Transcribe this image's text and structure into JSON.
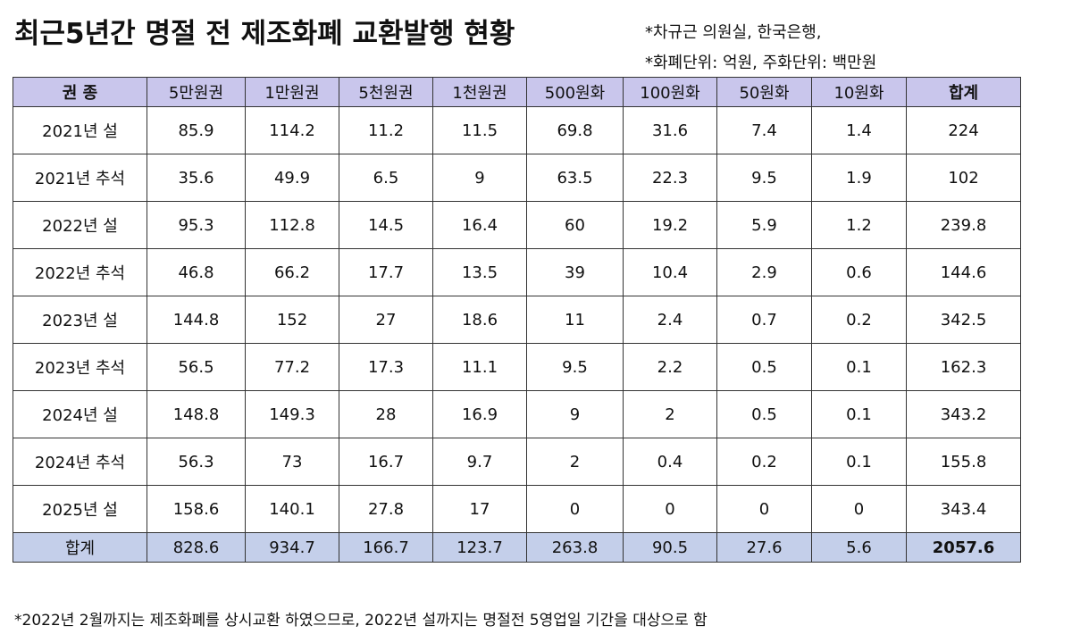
{
  "title": "최근5년간 명절 전 제조화폐 교환발행 현황",
  "source_lines": [
    "*차규근 의원실, 한국은행,",
    "*화폐단위: 억원, 주화단위: 백만원"
  ],
  "table": {
    "headers": [
      "권 종",
      "5만원권",
      "1만원권",
      "5천원권",
      "1천원권",
      "500원화",
      "100원화",
      "50원화",
      "10원화",
      "합계"
    ],
    "rows": [
      [
        "2021년 설",
        "85.9",
        "114.2",
        "11.2",
        "11.5",
        "69.8",
        "31.6",
        "7.4",
        "1.4",
        "224"
      ],
      [
        "2021년 추석",
        "35.6",
        "49.9",
        "6.5",
        "9",
        "63.5",
        "22.3",
        "9.5",
        "1.9",
        "102"
      ],
      [
        "2022년 설",
        "95.3",
        "112.8",
        "14.5",
        "16.4",
        "60",
        "19.2",
        "5.9",
        "1.2",
        "239.8"
      ],
      [
        "2022년 추석",
        "46.8",
        "66.2",
        "17.7",
        "13.5",
        "39",
        "10.4",
        "2.9",
        "0.6",
        "144.6"
      ],
      [
        "2023년 설",
        "144.8",
        "152",
        "27",
        "18.6",
        "11",
        "2.4",
        "0.7",
        "0.2",
        "342.5"
      ],
      [
        "2023년 추석",
        "56.5",
        "77.2",
        "17.3",
        "11.1",
        "9.5",
        "2.2",
        "0.5",
        "0.1",
        "162.3"
      ],
      [
        "2024년 설",
        "148.8",
        "149.3",
        "28",
        "16.9",
        "9",
        "2",
        "0.5",
        "0.1",
        "343.2"
      ],
      [
        "2024년 추석",
        "56.3",
        "73",
        "16.7",
        "9.7",
        "2",
        "0.4",
        "0.2",
        "0.1",
        "155.8"
      ],
      [
        "2025년 설",
        "158.6",
        "140.1",
        "27.8",
        "17",
        "0",
        "0",
        "0",
        "0",
        "343.4"
      ]
    ],
    "total": [
      "합계",
      "828.6",
      "934.7",
      "166.7",
      "123.7",
      "263.8",
      "90.5",
      "27.6",
      "5.6",
      "2057.6"
    ]
  },
  "footnote": "*2022년 2월까지는 제조화폐를 상시교환 하였으므로, 2022년 설까지는 명절전 5영업일 기간을 대상으로 함",
  "colors": {
    "header_bg": "#c9c6ec",
    "total_bg": "#c4cfea",
    "border": "#333333"
  }
}
